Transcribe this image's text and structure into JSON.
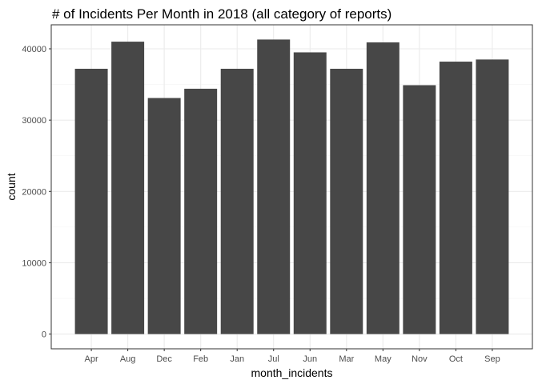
{
  "chart_data": {
    "type": "bar",
    "title": "# of Incidents Per Month in 2018 (all category of reports)",
    "xlabel": "month_incidents",
    "ylabel": "count",
    "categories": [
      "Apr",
      "Aug",
      "Dec",
      "Feb",
      "Jan",
      "Jul",
      "Jun",
      "Mar",
      "May",
      "Nov",
      "Oct",
      "Sep"
    ],
    "values": [
      37200,
      41000,
      33100,
      34400,
      37200,
      41300,
      39500,
      37200,
      40900,
      34900,
      38200,
      38500
    ],
    "ylim": [
      -2065,
      43365
    ],
    "yticks": [
      0,
      10000,
      20000,
      30000,
      40000
    ],
    "ytick_labels": [
      "0",
      "10000",
      "20000",
      "30000",
      "40000"
    ],
    "grid": true,
    "legend": "none",
    "colors": {
      "bar": "#474747",
      "panel_border": "#333333",
      "grid_major": "#ebebeb",
      "grid_minor": "#f5f5f5",
      "tick_text": "#4d4d4d",
      "text": "#000000"
    }
  }
}
